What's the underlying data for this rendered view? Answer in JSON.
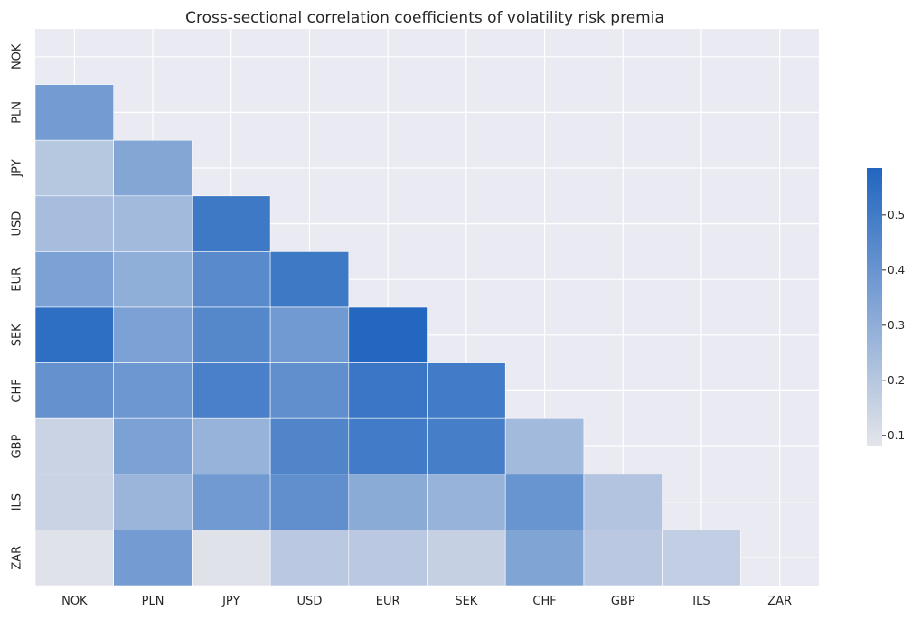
{
  "chart_data": {
    "type": "heatmap",
    "title": "Cross-sectional correlation coefficients of volatility risk premia",
    "x_labels": [
      "NOK",
      "PLN",
      "JPY",
      "USD",
      "EUR",
      "SEK",
      "CHF",
      "GBP",
      "ILS",
      "ZAR"
    ],
    "y_labels": [
      "NOK",
      "PLN",
      "JPY",
      "USD",
      "EUR",
      "SEK",
      "CHF",
      "GBP",
      "ILS",
      "ZAR"
    ],
    "mask": "upper-triangle-including-diagonal",
    "values": [
      [
        null,
        null,
        null,
        null,
        null,
        null,
        null,
        null,
        null,
        null
      ],
      [
        0.37,
        null,
        null,
        null,
        null,
        null,
        null,
        null,
        null,
        null
      ],
      [
        0.2,
        0.33,
        null,
        null,
        null,
        null,
        null,
        null,
        null,
        null
      ],
      [
        0.24,
        0.25,
        0.51,
        null,
        null,
        null,
        null,
        null,
        null,
        null
      ],
      [
        0.35,
        0.3,
        0.44,
        0.51,
        null,
        null,
        null,
        null,
        null,
        null
      ],
      [
        0.55,
        0.35,
        0.45,
        0.38,
        0.58,
        null,
        null,
        null,
        null,
        null
      ],
      [
        0.41,
        0.39,
        0.48,
        0.42,
        0.52,
        0.5,
        null,
        null,
        null,
        null
      ],
      [
        0.15,
        0.35,
        0.28,
        0.46,
        0.5,
        0.49,
        0.25,
        null,
        null,
        null
      ],
      [
        0.15,
        0.27,
        0.38,
        0.42,
        0.31,
        0.28,
        0.4,
        0.21,
        null,
        null
      ],
      [
        0.09,
        0.37,
        0.09,
        0.19,
        0.19,
        0.16,
        0.34,
        0.19,
        0.17,
        null
      ]
    ],
    "colorbar": {
      "min": 0.08,
      "max": 0.585,
      "ticks": [
        "0.1",
        "0.2",
        "0.3",
        "0.4",
        "0.5"
      ],
      "colors": {
        "low": "#e4e5ea",
        "high": "#2166c0"
      }
    },
    "grid": true,
    "background_color": "#eaeaf2"
  }
}
